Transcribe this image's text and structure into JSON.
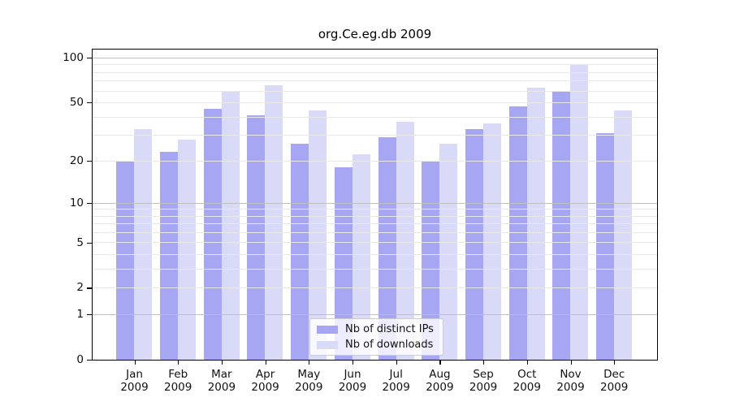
{
  "chart_data": {
    "type": "bar",
    "title": "org.Ce.eg.db 2009",
    "year": "2009",
    "months": [
      "Jan",
      "Feb",
      "Mar",
      "Apr",
      "May",
      "Jun",
      "Jul",
      "Aug",
      "Sep",
      "Oct",
      "Nov",
      "Dec"
    ],
    "series": [
      {
        "name": "Nb of distinct IPs",
        "color": "#a6a6f2",
        "values": [
          20,
          23,
          45,
          41,
          26,
          18,
          29,
          20,
          33,
          47,
          60,
          31
        ]
      },
      {
        "name": "Nb of downloads",
        "color": "#d9d9f8",
        "values": [
          33,
          28,
          59,
          65,
          44,
          22,
          37,
          26,
          36,
          63,
          91,
          44
        ]
      }
    ],
    "yscale": "log1p",
    "ylim": [
      0,
      113
    ],
    "ytick_labels": [
      0,
      1,
      2,
      5,
      10,
      20,
      50,
      100
    ],
    "grid": {
      "minor": [
        2,
        3,
        4,
        5,
        6,
        7,
        8,
        9,
        20,
        30,
        40,
        50,
        60,
        70,
        80,
        90
      ],
      "major": [
        1,
        10,
        100
      ]
    },
    "legend_position": "lower center",
    "colors": {
      "axis": "#000000",
      "minor_grid": "#e8e8e8",
      "major_grid": "#c0c0c0",
      "legend_border": "#cccccc",
      "legend_background": "rgba(255,255,255,0.8)"
    }
  }
}
